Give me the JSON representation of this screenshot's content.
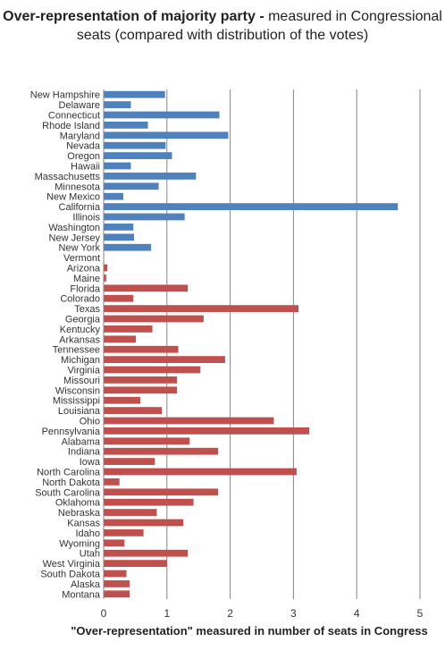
{
  "chart_data": {
    "type": "bar",
    "orientation": "horizontal",
    "title_bold": "Over-representation of majority party -",
    "title_rest": " measured in Congressional seats (compared with distribution of the votes)",
    "xlabel": "\"Over-representation\" measured in number of seats in Congress",
    "ylabel": "",
    "xlim": [
      0,
      5
    ],
    "xticks": [
      "0",
      "1",
      "2",
      "3",
      "4",
      "5"
    ],
    "grid": "vertical",
    "legend": "none",
    "colors": {
      "democratic": "#4f81bd",
      "republican": "#c0504d",
      "grid": "#868686"
    },
    "categories": [
      "New Hampshire",
      "Delaware",
      "Connecticut",
      "Rhode Island",
      "Maryland",
      "Nevada",
      "Oregon",
      "Hawaii",
      "Massachusetts",
      "Minnesota",
      "New Mexico",
      "California",
      "Illinois",
      "Washington",
      "New Jersey",
      "New York",
      "Vermont",
      "Arizona",
      "Maine",
      "Florida",
      "Colorado",
      "Texas",
      "Georgia",
      "Kentucky",
      "Arkansas",
      "Tennessee",
      "Michigan",
      "Virginia",
      "Missouri",
      "Wisconsin",
      "Mississippi",
      "Louisiana",
      "Ohio",
      "Pennsylvania",
      "Alabama",
      "Indiana",
      "Iowa",
      "North Carolina",
      "North Dakota",
      "South Carolina",
      "Oklahoma",
      "Nebraska",
      "Kansas",
      "Idaho",
      "Wyoming",
      "Utah",
      "West Virginia",
      "South Dakota",
      "Alaska",
      "Montana"
    ],
    "values": [
      0.97,
      0.43,
      1.83,
      0.7,
      1.97,
      0.98,
      1.08,
      0.43,
      1.46,
      0.87,
      0.31,
      4.65,
      1.28,
      0.47,
      0.48,
      0.75,
      0.0,
      0.06,
      0.04,
      1.33,
      0.47,
      3.08,
      1.58,
      0.77,
      0.51,
      1.18,
      1.92,
      1.53,
      1.16,
      1.16,
      0.58,
      0.92,
      2.69,
      3.25,
      1.36,
      1.81,
      0.81,
      3.05,
      0.25,
      1.81,
      1.42,
      0.84,
      1.26,
      0.63,
      0.33,
      1.33,
      1.0,
      0.36,
      0.41,
      0.41
    ],
    "colorGroup": [
      "democratic",
      "democratic",
      "democratic",
      "democratic",
      "democratic",
      "democratic",
      "democratic",
      "democratic",
      "democratic",
      "democratic",
      "democratic",
      "democratic",
      "democratic",
      "democratic",
      "democratic",
      "democratic",
      "democratic",
      "republican",
      "republican",
      "republican",
      "republican",
      "republican",
      "republican",
      "republican",
      "republican",
      "republican",
      "republican",
      "republican",
      "republican",
      "republican",
      "republican",
      "republican",
      "republican",
      "republican",
      "republican",
      "republican",
      "republican",
      "republican",
      "republican",
      "republican",
      "republican",
      "republican",
      "republican",
      "republican",
      "republican",
      "republican",
      "republican",
      "republican",
      "republican",
      "republican"
    ]
  }
}
